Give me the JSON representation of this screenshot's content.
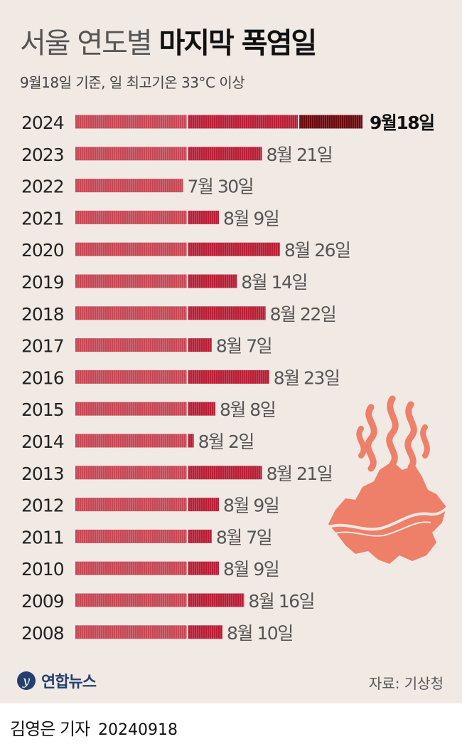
{
  "header": {
    "title_light": "서울 연도별",
    "title_bold": "마지막 폭염일",
    "subtitle": "9월18일 기준, 일 최고기온 33°C 이상"
  },
  "colors": {
    "background": "#f1e9e4",
    "bar_light": "#c54855",
    "bar_dark": "#b81f36",
    "bar_highlight": "#6b0a0e",
    "illustration": "#ee7f68"
  },
  "chart_data": {
    "type": "bar",
    "orientation": "horizontal",
    "title": "서울 연도별 마지막 폭염일",
    "subtitle": "9월18일 기준, 일 최고기온 33°C 이상",
    "unit": "date (month/day)",
    "categories": [
      "2024",
      "2023",
      "2022",
      "2021",
      "2020",
      "2019",
      "2018",
      "2017",
      "2016",
      "2015",
      "2014",
      "2013",
      "2012",
      "2011",
      "2010",
      "2009",
      "2008"
    ],
    "values": [
      "09-18",
      "08-21",
      "07-30",
      "08-09",
      "08-26",
      "08-14",
      "08-22",
      "08-07",
      "08-23",
      "08-08",
      "08-02",
      "08-21",
      "08-09",
      "08-07",
      "08-09",
      "08-16",
      "08-10"
    ],
    "labels": [
      "9월18일",
      "8월 21일",
      "7월 30일",
      "8월 9일",
      "8월 26일",
      "8월 14일",
      "8월 22일",
      "8월 7일",
      "8월 23일",
      "8월 8일",
      "8월 2일",
      "8월 21일",
      "8월 9일",
      "8월 7일",
      "8월 9일",
      "8월 16일",
      "8월 10일"
    ],
    "segments_by_month": [
      "7월",
      "8월",
      "9월"
    ],
    "highlight": "2024"
  },
  "footer": {
    "logo": "연합뉴스",
    "source": "자료: 기상청",
    "reporter": "김영은 기자",
    "date": "20240918"
  }
}
